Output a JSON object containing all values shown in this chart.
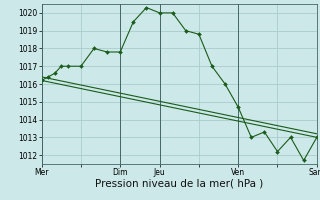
{
  "bg_color": "#cce8e8",
  "grid_color": "#aacccc",
  "line_color": "#1a5c1a",
  "marker_color": "#1a5c1a",
  "xlabel": "Pression niveau de la mer( hPa )",
  "xlabel_fontsize": 7.5,
  "ylim": [
    1011.5,
    1020.5
  ],
  "yticks": [
    1012,
    1013,
    1014,
    1015,
    1016,
    1017,
    1018,
    1019,
    1020
  ],
  "xtick_labels": [
    "Mer",
    "",
    "Dim",
    "Jeu",
    "",
    "Ven",
    "",
    "Sam"
  ],
  "xtick_positions": [
    0,
    3,
    6,
    9,
    12,
    15,
    18,
    21
  ],
  "vlines": [
    0,
    6,
    9,
    15,
    21
  ],
  "xlim": [
    0,
    21
  ],
  "series1_x": [
    0,
    0.5,
    1,
    1.5,
    2,
    3,
    4,
    5,
    6,
    7,
    8,
    9,
    10,
    11,
    12,
    13,
    14,
    15,
    16,
    17,
    18,
    19,
    20,
    21
  ],
  "series1_y": [
    1016.2,
    1016.4,
    1016.6,
    1017.0,
    1017.0,
    1017.0,
    1018.0,
    1017.8,
    1017.8,
    1019.5,
    1020.3,
    1020.0,
    1020.0,
    1019.0,
    1018.8,
    1017.0,
    1016.0,
    1014.7,
    1013.0,
    1013.3,
    1012.2,
    1013.0,
    1011.7,
    1013.0
  ],
  "series1_markers_x": [
    0,
    0.5,
    1,
    2,
    3,
    4,
    5,
    6,
    7,
    8,
    9,
    10,
    11,
    12,
    13,
    14,
    15,
    16,
    17,
    18,
    19,
    20,
    21
  ],
  "series1_markers_y": [
    1016.2,
    1016.4,
    1016.6,
    1017.0,
    1017.0,
    1018.0,
    1017.8,
    1017.8,
    1019.5,
    1020.3,
    1020.0,
    1020.0,
    1019.0,
    1018.8,
    1017.0,
    1016.0,
    1014.7,
    1013.0,
    1013.3,
    1012.2,
    1013.0,
    1011.7,
    1013.0
  ],
  "series2_x": [
    0,
    21
  ],
  "series2_y": [
    1016.4,
    1013.2
  ],
  "series3_x": [
    0,
    21
  ],
  "series3_y": [
    1016.2,
    1013.0
  ]
}
